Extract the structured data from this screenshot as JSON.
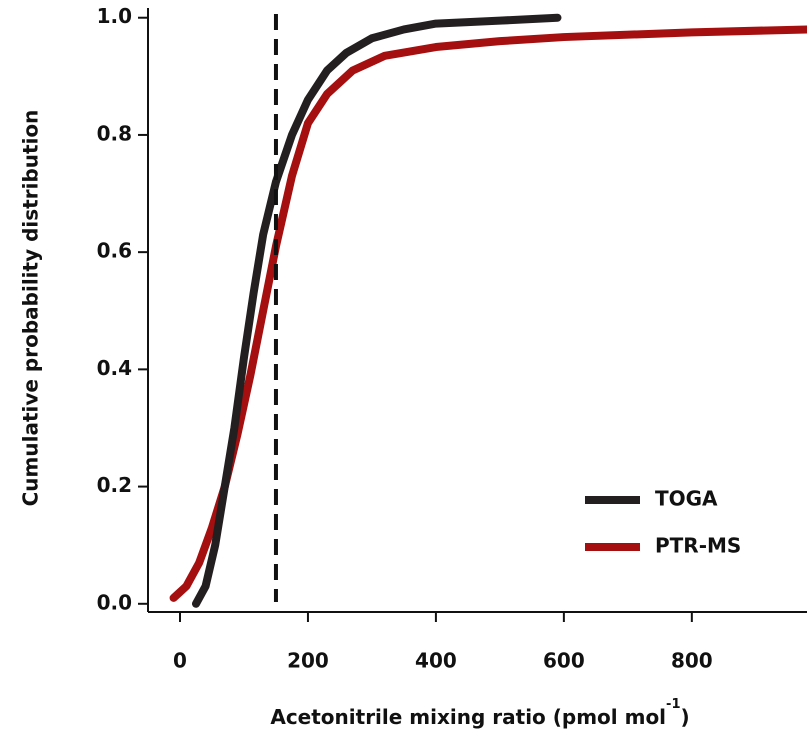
{
  "chart_data": {
    "type": "line",
    "ylabel": "Cumulative probability distribution",
    "xlabel": {
      "text": "Acetonitrile mixing ratio (pmol mol",
      "superscript": "-1",
      "suffix": ")"
    },
    "xlim": [
      -50,
      980
    ],
    "ylim": [
      -0.014,
      1.02
    ],
    "xticks": [
      0,
      200,
      400,
      600,
      800
    ],
    "yticks": [
      {
        "value": 0,
        "label": "0.0"
      },
      0.2,
      0.4,
      0.6,
      0.8,
      {
        "value": 1,
        "label": "1.0"
      }
    ],
    "vline": 150,
    "legend": "lower right",
    "series": [
      {
        "name": "TOGA",
        "color": "#231f20",
        "x": [
          25,
          40,
          55,
          70,
          85,
          100,
          115,
          130,
          150,
          175,
          200,
          230,
          260,
          300,
          350,
          400,
          500,
          590
        ],
        "values": [
          0,
          0.03,
          0.1,
          0.2,
          0.3,
          0.42,
          0.53,
          0.63,
          0.72,
          0.8,
          0.86,
          0.91,
          0.94,
          0.965,
          0.98,
          0.99,
          0.995,
          1.0
        ]
      },
      {
        "name": "PTR-MS",
        "color": "#a50f0f",
        "x": [
          -10,
          10,
          30,
          50,
          70,
          90,
          110,
          130,
          150,
          175,
          200,
          230,
          270,
          320,
          400,
          500,
          600,
          800,
          980
        ],
        "values": [
          0.01,
          0.03,
          0.07,
          0.13,
          0.2,
          0.29,
          0.39,
          0.5,
          0.61,
          0.73,
          0.82,
          0.87,
          0.91,
          0.935,
          0.95,
          0.96,
          0.967,
          0.975,
          0.98
        ]
      }
    ]
  }
}
